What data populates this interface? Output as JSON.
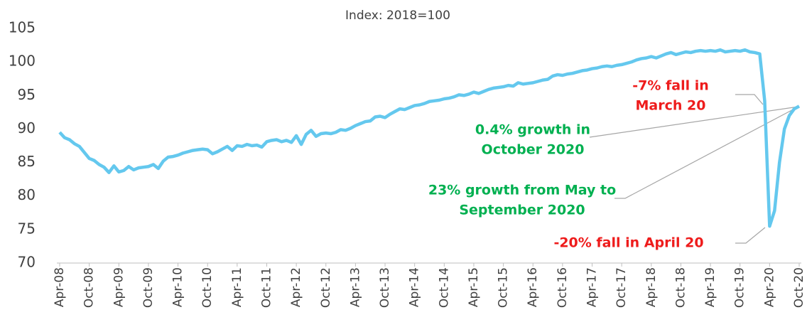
{
  "chart_data": {
    "type": "line",
    "subtitle": "Index: 2018=100",
    "categories": [
      "Apr-08",
      null,
      null,
      null,
      null,
      null,
      "Oct-08",
      null,
      null,
      null,
      null,
      null,
      "Apr-09",
      null,
      null,
      null,
      null,
      null,
      "Oct-09",
      null,
      null,
      null,
      null,
      null,
      "Apr-10",
      null,
      null,
      null,
      null,
      null,
      "Oct-10",
      null,
      null,
      null,
      null,
      null,
      "Apr-11",
      null,
      null,
      null,
      null,
      null,
      "Oct-11",
      null,
      null,
      null,
      null,
      null,
      "Apr-12",
      null,
      null,
      null,
      null,
      null,
      "Oct-12",
      null,
      null,
      null,
      null,
      null,
      "Apr-13",
      null,
      null,
      null,
      null,
      null,
      "Oct-13",
      null,
      null,
      null,
      null,
      null,
      "Apr-14",
      null,
      null,
      null,
      null,
      null,
      "Oct-14",
      null,
      null,
      null,
      null,
      null,
      "Apr-15",
      null,
      null,
      null,
      null,
      null,
      "Oct-15",
      null,
      null,
      null,
      null,
      null,
      "Apr-16",
      null,
      null,
      null,
      null,
      null,
      "Oct-16",
      null,
      null,
      null,
      null,
      null,
      "Apr-17",
      null,
      null,
      null,
      null,
      null,
      "Oct-17",
      null,
      null,
      null,
      null,
      null,
      "Apr-18",
      null,
      null,
      null,
      null,
      null,
      "Oct-18",
      null,
      null,
      null,
      null,
      null,
      "Apr-19",
      null,
      null,
      null,
      null,
      null,
      "Oct-19",
      null,
      null,
      null,
      null,
      null,
      "Apr-20",
      null,
      null,
      null,
      null,
      null,
      "Oct-20"
    ],
    "series": [
      {
        "color": "#64c8ee",
        "values": [
          89.5,
          88.7,
          88.4,
          87.8,
          87.4,
          86.5,
          85.6,
          85.3,
          84.7,
          84.3,
          83.5,
          84.5,
          83.6,
          83.8,
          84.4,
          83.9,
          84.2,
          84.3,
          84.4,
          84.7,
          84.1,
          85.2,
          85.8,
          85.9,
          86.1,
          86.4,
          86.6,
          86.8,
          86.9,
          87.0,
          86.9,
          86.3,
          86.6,
          87.0,
          87.4,
          86.8,
          87.5,
          87.4,
          87.7,
          87.5,
          87.6,
          87.3,
          88.1,
          88.3,
          88.4,
          88.1,
          88.3,
          88.0,
          89.0,
          87.7,
          89.2,
          89.8,
          88.9,
          89.3,
          89.4,
          89.3,
          89.5,
          89.9,
          89.8,
          90.1,
          90.5,
          90.8,
          91.1,
          91.2,
          91.8,
          91.9,
          91.7,
          92.2,
          92.6,
          93.0,
          92.9,
          93.2,
          93.5,
          93.6,
          93.8,
          94.1,
          94.2,
          94.3,
          94.5,
          94.6,
          94.8,
          95.1,
          95.0,
          95.2,
          95.5,
          95.3,
          95.6,
          95.9,
          96.1,
          96.2,
          96.3,
          96.5,
          96.4,
          96.9,
          96.7,
          96.8,
          96.9,
          97.1,
          97.3,
          97.4,
          97.9,
          98.1,
          98.0,
          98.2,
          98.3,
          98.5,
          98.7,
          98.8,
          99.0,
          99.1,
          99.3,
          99.4,
          99.3,
          99.5,
          99.6,
          99.8,
          100.0,
          100.3,
          100.5,
          100.6,
          100.8,
          100.6,
          100.9,
          101.2,
          101.4,
          101.1,
          101.3,
          101.5,
          101.4,
          101.6,
          101.7,
          101.6,
          101.7,
          101.6,
          101.8,
          101.5,
          101.6,
          101.7,
          101.6,
          101.8,
          101.5,
          101.4,
          101.2,
          94.2,
          75.5,
          77.8,
          85.0,
          90.0,
          92.0,
          93.0,
          93.4
        ]
      }
    ],
    "ylim": [
      70,
      105
    ],
    "yticks": [
      70,
      75,
      80,
      85,
      90,
      95,
      100,
      105
    ],
    "annotations": [
      {
        "lines": [
          "-7% fall in",
          "March 20"
        ],
        "color": "#ee1c1c"
      },
      {
        "lines": [
          "0.4% growth in",
          "October 2020"
        ],
        "color": "#00b050"
      },
      {
        "lines": [
          "23% growth from May to",
          "September 2020"
        ],
        "color": "#00b050"
      },
      {
        "lines": [
          "-20% fall in April 20"
        ],
        "color": "#ee1c1c"
      }
    ]
  }
}
